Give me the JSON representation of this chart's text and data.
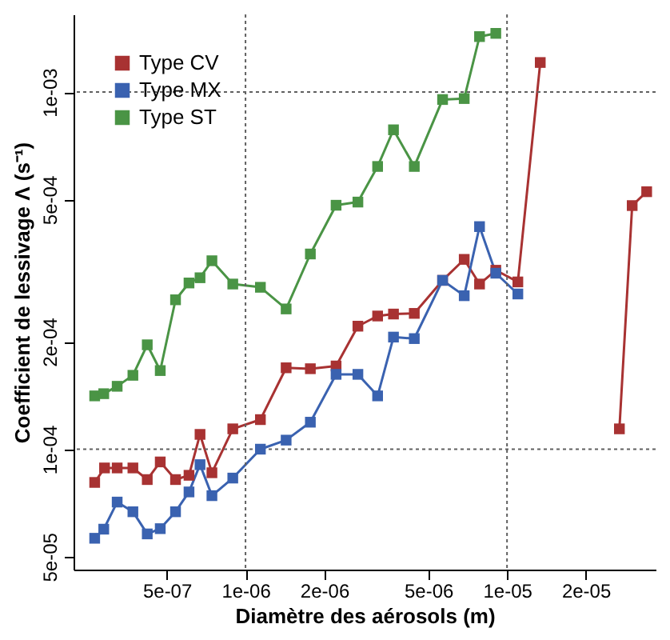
{
  "chart_data": {
    "type": "line",
    "xlabel": "Diamètre des aérosols (m)",
    "ylabel": "Coefficient de lessivage Λ (s⁻¹)",
    "log": "xy",
    "xlim": [
      2.2e-07,
      3.7e-05
    ],
    "ylim": [
      4.6e-05,
      0.00165
    ],
    "xticks": [
      {
        "value": 5e-07,
        "label": "5e-07"
      },
      {
        "value": 1e-06,
        "label": "1e-06"
      },
      {
        "value": 2e-06,
        "label": "2e-06"
      },
      {
        "value": 5e-06,
        "label": "5e-06"
      },
      {
        "value": 1e-05,
        "label": "1e-05"
      },
      {
        "value": 2e-05,
        "label": "2e-05"
      }
    ],
    "yticks": [
      {
        "value": 5e-05,
        "label": "5e-05"
      },
      {
        "value": 0.0001,
        "label": "1e-04"
      },
      {
        "value": 0.0002,
        "label": "2e-04"
      },
      {
        "value": 0.0005,
        "label": "5e-04"
      },
      {
        "value": 0.001,
        "label": "1e-03"
      }
    ],
    "legend": "top left",
    "marker": "square",
    "line_style": "solid",
    "ref_lines": [
      {
        "axis": "x",
        "value": 1e-06,
        "color": "#606060",
        "line_style": "dotted"
      },
      {
        "axis": "x",
        "value": 1e-05,
        "color": "#606060",
        "line_style": "dotted"
      },
      {
        "axis": "y",
        "value": 0.0001,
        "color": "#606060",
        "line_style": "dotted"
      },
      {
        "axis": "y",
        "value": 0.001,
        "color": "#606060",
        "line_style": "dotted"
      }
    ],
    "series": [
      {
        "name": "Type CV",
        "color": "#a83232",
        "x": [
          2.65e-07,
          2.89e-07,
          3.23e-07,
          3.71e-07,
          4.21e-07,
          4.72e-07,
          5.4e-07,
          6.08e-07,
          6.7e-07,
          7.44e-07,
          8.94e-07,
          1.14e-06,
          1.43e-06,
          1.77e-06,
          2.22e-06,
          2.69e-06,
          3.2e-06,
          3.68e-06,
          4.42e-06,
          5.67e-06,
          6.86e-06,
          7.85e-06,
          9.06e-06,
          1.1e-05,
          1.34e-05,
          2e-05,
          2.69e-05,
          3.01e-05,
          3.42e-05
        ],
        "values": [
          8.07e-05,
          8.86e-05,
          8.86e-05,
          8.86e-05,
          8.22e-05,
          9.21e-05,
          8.22e-05,
          8.45e-05,
          0.00011,
          8.59e-05,
          0.000114,
          0.000121,
          0.000169,
          0.000168,
          0.000171,
          0.000221,
          0.000236,
          0.000239,
          0.00024,
          0.000297,
          0.00034,
          0.00029,
          0.000317,
          0.000294,
          0.00121,
          null,
          0.000114,
          0.000481,
          0.000526
        ]
      },
      {
        "name": "Type MX",
        "color": "#3a62b0",
        "x": [
          2.65e-07,
          2.87e-07,
          3.23e-07,
          3.71e-07,
          4.21e-07,
          4.72e-07,
          5.4e-07,
          6.08e-07,
          6.7e-07,
          7.44e-07,
          8.94e-07,
          1.14e-06,
          1.43e-06,
          1.77e-06,
          2.22e-06,
          2.69e-06,
          3.2e-06,
          3.68e-06,
          4.42e-06,
          5.67e-06,
          6.86e-06,
          7.85e-06,
          9.06e-06,
          1.1e-05
        ],
        "values": [
          5.63e-05,
          5.97e-05,
          7.11e-05,
          6.68e-05,
          5.79e-05,
          5.99e-05,
          6.68e-05,
          7.59e-05,
          9.05e-05,
          7.41e-05,
          8.3e-05,
          0.0001,
          0.000106,
          0.000119,
          0.000162,
          0.000162,
          0.000141,
          0.000206,
          0.000204,
          0.000297,
          0.000269,
          0.00042,
          0.000311,
          0.000272
        ]
      },
      {
        "name": "Type ST",
        "color": "#4a9445",
        "x": [
          2.65e-07,
          2.87e-07,
          3.23e-07,
          3.71e-07,
          4.21e-07,
          4.72e-07,
          5.4e-07,
          6.08e-07,
          6.7e-07,
          7.44e-07,
          8.94e-07,
          1.14e-06,
          1.43e-06,
          1.77e-06,
          2.22e-06,
          2.69e-06,
          3.2e-06,
          3.68e-06,
          4.42e-06,
          5.67e-06,
          6.86e-06,
          7.85e-06,
          9.06e-06
        ],
        "values": [
          0.000141,
          0.000143,
          0.00015,
          0.000161,
          0.000196,
          0.000166,
          0.000262,
          0.000292,
          0.000302,
          0.000337,
          0.00029,
          0.000284,
          0.000247,
          0.000352,
          0.000482,
          0.000492,
          0.000619,
          0.000784,
          0.000619,
          0.000953,
          0.000959,
          0.00143,
          0.00146
        ]
      }
    ]
  }
}
